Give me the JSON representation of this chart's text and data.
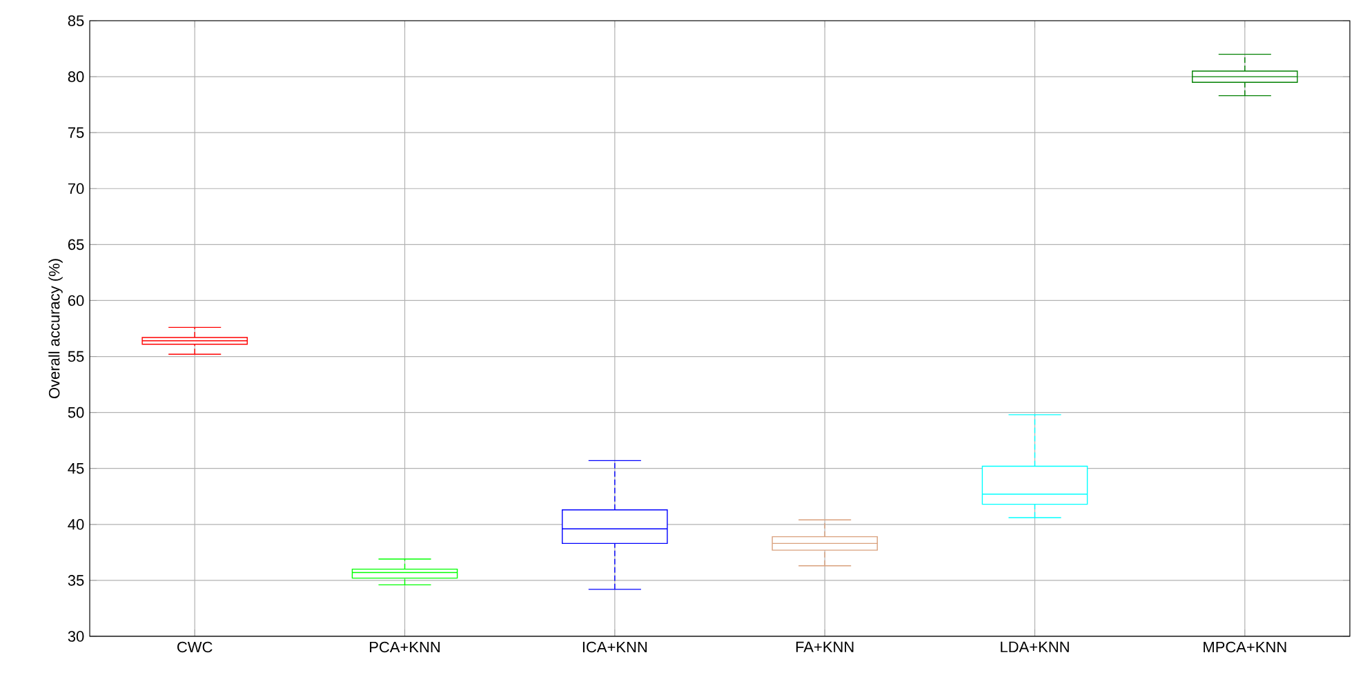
{
  "chart_data": {
    "type": "box",
    "ylabel": "Overall accuracy (%)",
    "categories": [
      "CWC",
      "PCA+KNN",
      "ICA+KNN",
      "FA+KNN",
      "LDA+KNN",
      "MPCA+KNN"
    ],
    "boxes": [
      {
        "low": 55.2,
        "q1": 56.1,
        "median": 56.4,
        "q3": 56.7,
        "high": 57.6
      },
      {
        "low": 34.6,
        "q1": 35.2,
        "median": 35.7,
        "q3": 36.0,
        "high": 36.9
      },
      {
        "low": 34.2,
        "q1": 38.3,
        "median": 39.6,
        "q3": 41.3,
        "high": 45.7
      },
      {
        "low": 36.3,
        "q1": 37.7,
        "median": 38.3,
        "q3": 38.9,
        "high": 40.4
      },
      {
        "low": 40.6,
        "q1": 41.8,
        "median": 42.7,
        "q3": 45.2,
        "high": 49.8
      },
      {
        "low": 78.3,
        "q1": 79.5,
        "median": 80.0,
        "q3": 80.5,
        "high": 82.0
      }
    ],
    "colors": [
      "#ff0000",
      "#00ff00",
      "#0000ff",
      "#d9a07c",
      "#00ffff",
      "#008000"
    ],
    "ylim": [
      30,
      85
    ],
    "yticks": [
      30,
      35,
      40,
      45,
      50,
      55,
      60,
      65,
      70,
      75,
      80,
      85
    ],
    "grid": true,
    "line_style": "dashed"
  }
}
